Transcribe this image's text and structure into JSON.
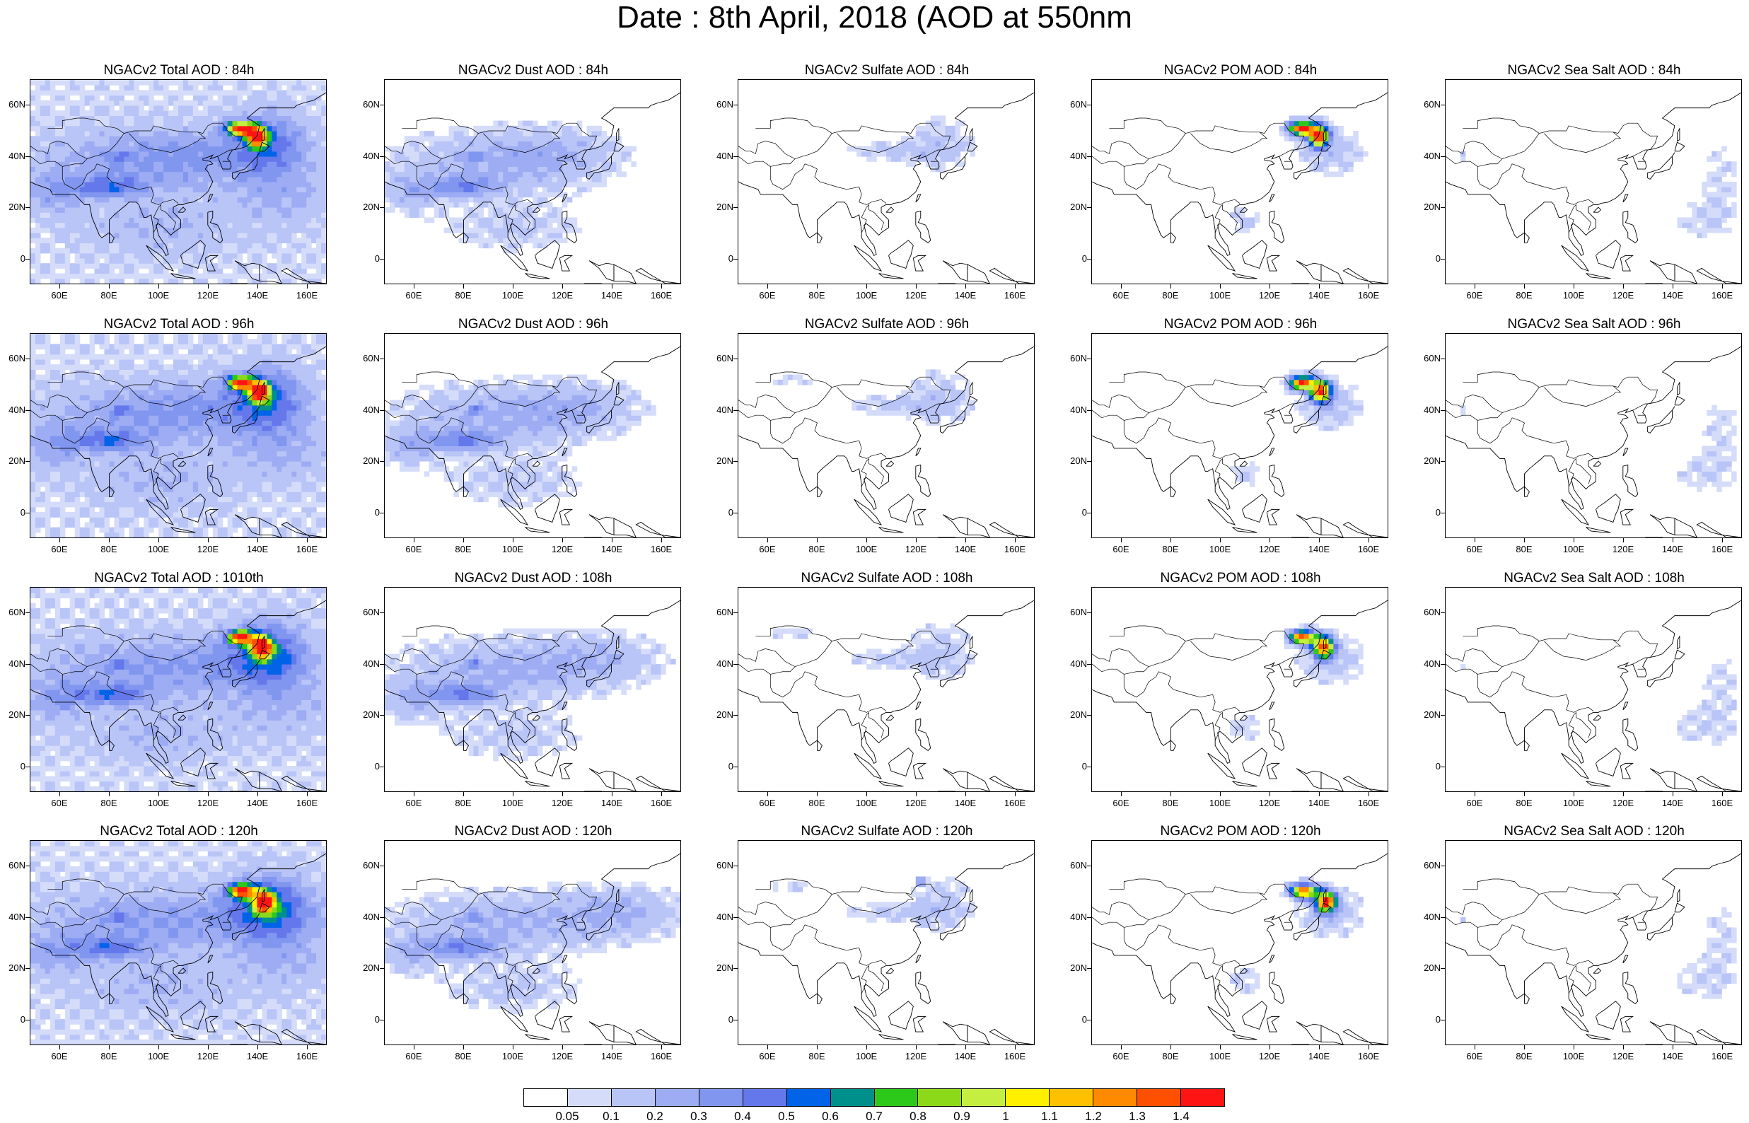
{
  "title": "Date : 8th April, 2018 (AOD at 550nm",
  "axes": {
    "y_ticks": [
      "60N",
      "40N",
      "20N",
      "0"
    ],
    "x_ticks": [
      "60E",
      "80E",
      "100E",
      "120E",
      "140E",
      "160E"
    ],
    "lon_range": [
      48,
      168
    ],
    "lat_range": [
      -10,
      70
    ]
  },
  "panels": [
    {
      "title": "NGACv2 Total AOD : 84h",
      "variable": "total"
    },
    {
      "title": "NGACv2 Dust AOD : 84h",
      "variable": "dust"
    },
    {
      "title": "NGACv2 Sulfate AOD : 84h",
      "variable": "sulfate"
    },
    {
      "title": "NGACv2 POM AOD : 84h",
      "variable": "pom"
    },
    {
      "title": "NGACv2 Sea Salt AOD : 84h",
      "variable": "seasalt"
    },
    {
      "title": "NGACv2 Total AOD : 96h",
      "variable": "total"
    },
    {
      "title": "NGACv2 Dust AOD : 96h",
      "variable": "dust"
    },
    {
      "title": "NGACv2 Sulfate AOD : 96h",
      "variable": "sulfate"
    },
    {
      "title": "NGACv2 POM AOD : 96h",
      "variable": "pom"
    },
    {
      "title": "NGACv2 Sea Salt AOD : 96h",
      "variable": "seasalt"
    },
    {
      "title": "NGACv2 Total AOD : 1010th",
      "variable": "total"
    },
    {
      "title": "NGACv2 Dust AOD : 108h",
      "variable": "dust"
    },
    {
      "title": "NGACv2 Sulfate AOD : 108h",
      "variable": "sulfate"
    },
    {
      "title": "NGACv2 POM AOD : 108h",
      "variable": "pom"
    },
    {
      "title": "NGACv2 Sea Salt AOD : 108h",
      "variable": "seasalt"
    },
    {
      "title": "NGACv2 Total AOD : 120h",
      "variable": "total"
    },
    {
      "title": "NGACv2 Dust AOD : 120h",
      "variable": "dust"
    },
    {
      "title": "NGACv2 Sulfate AOD : 120h",
      "variable": "sulfate"
    },
    {
      "title": "NGACv2 POM AOD : 120h",
      "variable": "pom"
    },
    {
      "title": "NGACv2 Sea Salt  AOD : 120h",
      "variable": "seasalt"
    }
  ],
  "colorbar": {
    "labels": [
      "0.05",
      "0.1",
      "0.2",
      "0.3",
      "0.4",
      "0.5",
      "0.6",
      "0.7",
      "0.8",
      "0.9",
      "1",
      "1.1",
      "1.2",
      "1.3",
      "1.4"
    ],
    "colors": [
      "#ffffff",
      "#d5dcfa",
      "#b9c4f7",
      "#9dacf3",
      "#8196ef",
      "#6478ec",
      "#0063e8",
      "#00908c",
      "#2cc91a",
      "#8cd91a",
      "#c4ef40",
      "#fff000",
      "#ffc000",
      "#ff8a00",
      "#ff5000",
      "#ff1414"
    ]
  }
}
